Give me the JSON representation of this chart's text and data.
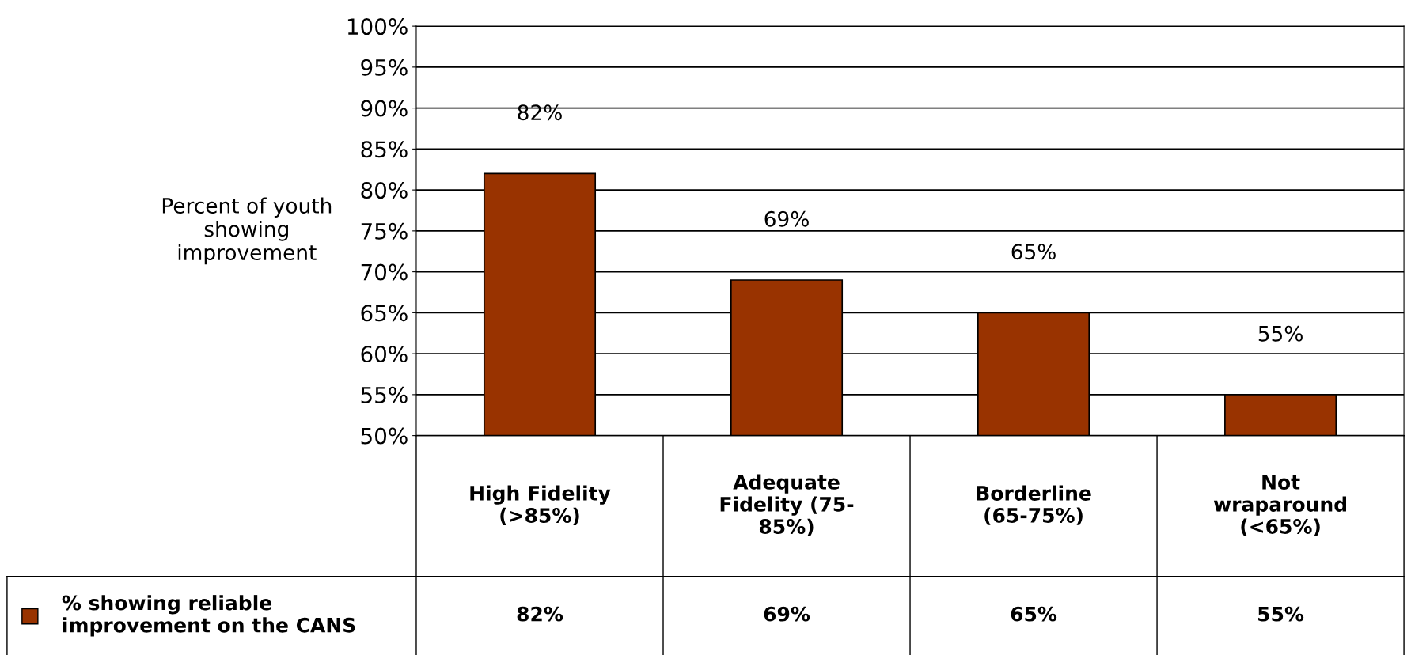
{
  "chart_data": {
    "type": "bar",
    "ylabel": "Percent of youth\nshowing\nimprovement",
    "categories": [
      "High Fidelity\n(>85%)",
      "Adequate\nFidelity (75-\n85%)",
      "Borderline\n(65-75%)",
      "Not\nwraparound\n(<65%)"
    ],
    "series": [
      {
        "name": "% showing reliable\nimprovement on the CANS",
        "color": "#993300",
        "values": [
          82,
          69,
          65,
          55
        ],
        "value_labels": [
          "82%",
          "69%",
          "65%",
          "55%"
        ]
      }
    ],
    "ylim": [
      50,
      100
    ],
    "yticks": [
      {
        "value": 50,
        "label": "50%"
      },
      {
        "value": 55,
        "label": "55%"
      },
      {
        "value": 60,
        "label": "60%"
      },
      {
        "value": 65,
        "label": "65%"
      },
      {
        "value": 70,
        "label": "70%"
      },
      {
        "value": 75,
        "label": "75%"
      },
      {
        "value": 80,
        "label": "80%"
      },
      {
        "value": 85,
        "label": "85%"
      },
      {
        "value": 90,
        "label": "90%"
      },
      {
        "value": 95,
        "label": "95%"
      },
      {
        "value": 100,
        "label": "100%"
      }
    ],
    "grid": "y",
    "legend": "bottom left"
  }
}
